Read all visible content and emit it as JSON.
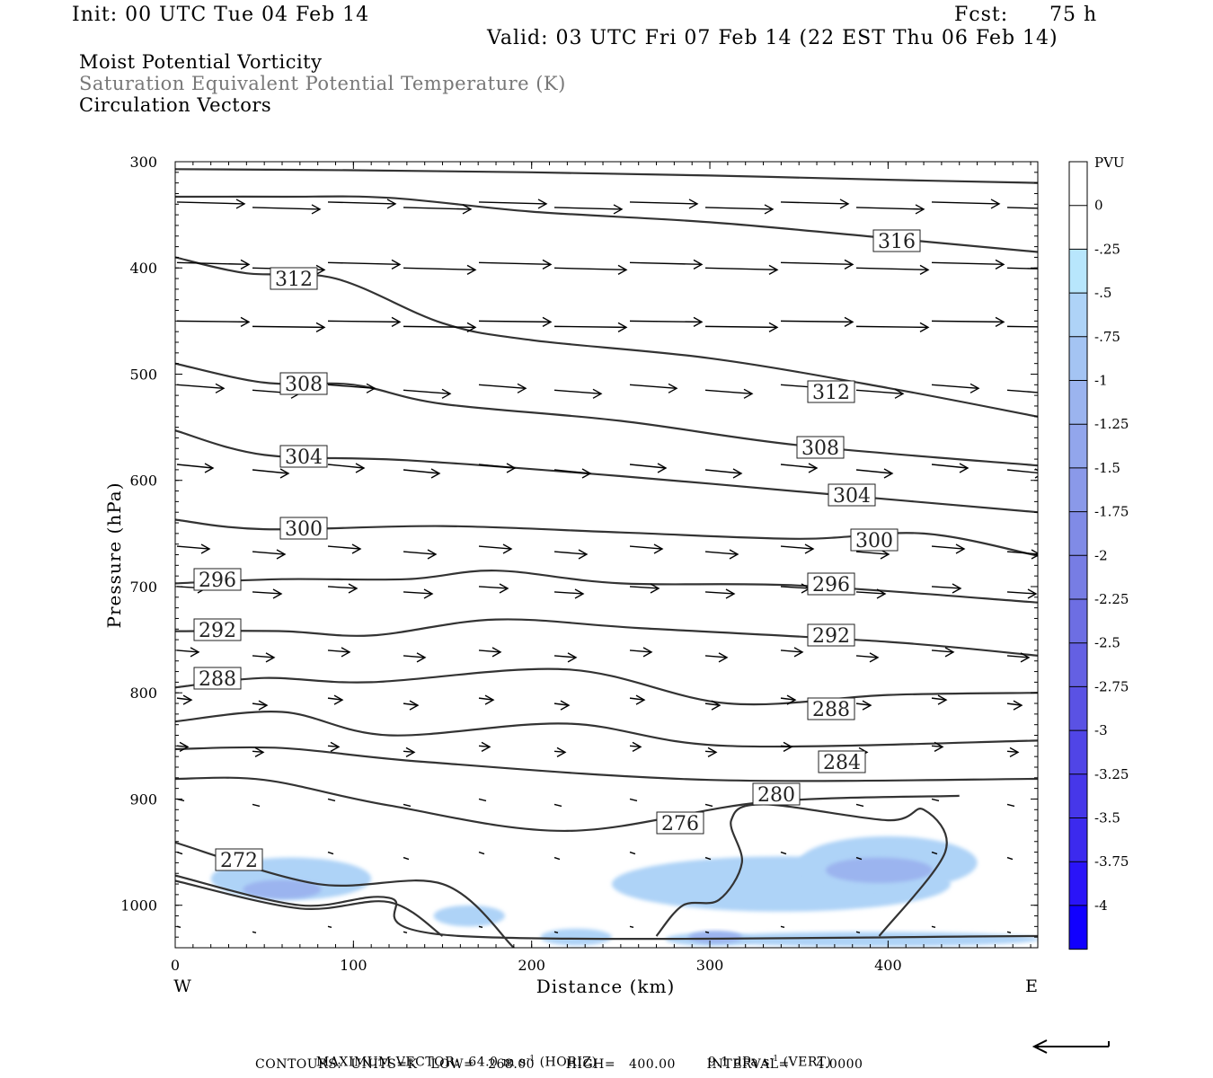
{
  "header": {
    "init": "Init: 00 UTC Tue 04 Feb 14",
    "fcst_label": "Fcst:",
    "fcst_value": "75 h",
    "valid": "Valid: 03 UTC Fri 07 Feb 14 (22 EST Thu 06 Feb 14)"
  },
  "titles": [
    "Moist Potential Vorticity",
    "Saturation Equivalent Potential Temperature (K)",
    "Circulation Vectors"
  ],
  "chart_data": {
    "type": "contour",
    "xlabel": "Distance (km)",
    "ylabel": "Pressure (hPa)",
    "x_ticks": [
      0,
      100,
      200,
      300,
      400
    ],
    "y_ticks": [
      300,
      400,
      500,
      600,
      700,
      800,
      900,
      1000
    ],
    "xlim": [
      0,
      484
    ],
    "ylim": [
      300,
      1040
    ],
    "left_end_label": "W",
    "right_end_label": "E",
    "contour_labels": [
      "316",
      "312",
      "312",
      "308",
      "308",
      "304",
      "304",
      "300",
      "300",
      "296",
      "296",
      "292",
      "292",
      "288",
      "288",
      "284",
      "280",
      "276",
      "272"
    ],
    "contour_units": "K",
    "contour_low": "268.00",
    "contour_high": "400.00",
    "contour_interval": "4.0000",
    "isentropes": [
      {
        "level": null,
        "points": [
          [
            0,
            307
          ],
          [
            100,
            308
          ],
          [
            200,
            310
          ],
          [
            300,
            313
          ],
          [
            400,
            317
          ],
          [
            484,
            320
          ]
        ]
      },
      {
        "level": null,
        "points": [
          [
            0,
            333
          ],
          [
            60,
            333
          ],
          [
            120,
            334
          ],
          [
            200,
            347
          ],
          [
            300,
            357
          ],
          [
            400,
            372
          ],
          [
            484,
            385
          ]
        ]
      },
      {
        "level": null,
        "points": [
          [
            0,
            390
          ],
          [
            40,
            405
          ],
          [
            90,
            410
          ],
          [
            150,
            452
          ],
          [
            200,
            468
          ],
          [
            300,
            485
          ],
          [
            400,
            513
          ],
          [
            484,
            540
          ]
        ]
      },
      {
        "level": null,
        "points": [
          [
            0,
            490
          ],
          [
            50,
            508
          ],
          [
            100,
            510
          ],
          [
            150,
            528
          ],
          [
            250,
            544
          ],
          [
            350,
            567
          ],
          [
            484,
            586
          ]
        ]
      },
      {
        "level": null,
        "points": [
          [
            0,
            553
          ],
          [
            50,
            576
          ],
          [
            130,
            581
          ],
          [
            250,
            596
          ],
          [
            360,
            612
          ],
          [
            484,
            630
          ]
        ]
      },
      {
        "level": null,
        "points": [
          [
            0,
            637
          ],
          [
            50,
            646
          ],
          [
            150,
            643
          ],
          [
            250,
            649
          ],
          [
            350,
            655
          ],
          [
            420,
            650
          ],
          [
            484,
            671
          ]
        ]
      },
      {
        "level": null,
        "points": [
          [
            0,
            697
          ],
          [
            60,
            693
          ],
          [
            130,
            693
          ],
          [
            180,
            685
          ],
          [
            250,
            697
          ],
          [
            350,
            699
          ],
          [
            484,
            715
          ]
        ]
      },
      {
        "level": null,
        "points": [
          [
            0,
            742
          ],
          [
            60,
            742
          ],
          [
            110,
            746
          ],
          [
            180,
            731
          ],
          [
            260,
            739
          ],
          [
            400,
            752
          ],
          [
            484,
            765
          ]
        ]
      },
      {
        "level": null,
        "points": [
          [
            0,
            795
          ],
          [
            50,
            786
          ],
          [
            110,
            790
          ],
          [
            220,
            778
          ],
          [
            310,
            810
          ],
          [
            400,
            802
          ],
          [
            484,
            800
          ]
        ]
      },
      {
        "level": null,
        "points": [
          [
            0,
            827
          ],
          [
            60,
            818
          ],
          [
            120,
            840
          ],
          [
            220,
            829
          ],
          [
            310,
            850
          ],
          [
            484,
            845
          ]
        ]
      },
      {
        "level": null,
        "points": [
          [
            0,
            853
          ],
          [
            60,
            852
          ],
          [
            140,
            865
          ],
          [
            300,
            882
          ],
          [
            484,
            881
          ]
        ]
      },
      {
        "level": null,
        "points": [
          [
            0,
            881
          ],
          [
            50,
            882
          ],
          [
            120,
            906
          ],
          [
            220,
            930
          ],
          [
            330,
            903
          ],
          [
            440,
            897
          ]
        ]
      },
      {
        "level": null,
        "points": [
          [
            0,
            941
          ],
          [
            80,
            980
          ],
          [
            150,
            980
          ],
          [
            190,
            1040
          ]
        ]
      },
      {
        "level": null,
        "points": [
          [
            0,
            972
          ],
          [
            70,
            1000
          ],
          [
            120,
            993
          ],
          [
            160,
            1029
          ],
          [
            484,
            1029
          ]
        ]
      },
      {
        "level": null,
        "points": [
          [
            0,
            977
          ],
          [
            70,
            1003
          ],
          [
            120,
            997
          ],
          [
            150,
            1029
          ]
        ]
      }
    ],
    "pv_shading": [
      {
        "value": -0.5,
        "blobs": [
          {
            "cx": 65,
            "cy": 975,
            "rx": 45,
            "ry": 20
          },
          {
            "cx": 165,
            "cy": 1010,
            "rx": 20,
            "ry": 10
          },
          {
            "cx": 225,
            "cy": 1030,
            "rx": 20,
            "ry": 8
          },
          {
            "cx": 340,
            "cy": 980,
            "rx": 95,
            "ry": 26
          },
          {
            "cx": 400,
            "cy": 960,
            "rx": 50,
            "ry": 25
          },
          {
            "cx": 390,
            "cy": 1032,
            "rx": 95,
            "ry": 7
          },
          {
            "cx": 300,
            "cy": 1032,
            "rx": 25,
            "ry": 6
          }
        ]
      },
      {
        "value": -1,
        "blobs": [
          {
            "cx": 60,
            "cy": 985,
            "rx": 22,
            "ry": 9
          },
          {
            "cx": 395,
            "cy": 967,
            "rx": 30,
            "ry": 12
          },
          {
            "cx": 303,
            "cy": 1030,
            "rx": 15,
            "ry": 6
          }
        ]
      }
    ],
    "vector_field_note": "Circulation vectors: left-to-right (west-to-east) flow, longest aloft, weakening toward surface",
    "colorbar": {
      "title": "PVU",
      "ticks": [
        "0",
        "-.25",
        "-.5",
        "-.75",
        "-1",
        "-1.25",
        "-1.5",
        "-1.75",
        "-2",
        "-2.25",
        "-2.5",
        "-2.75",
        "-3",
        "-3.25",
        "-3.5",
        "-3.75",
        "-4"
      ],
      "colors": [
        "#ffffff",
        "#ffffff",
        "#b8e6fc",
        "#aed3f7",
        "#a4c4f3",
        "#9bb4ef",
        "#92a6ec",
        "#8a99e9",
        "#808be6",
        "#777de4",
        "#6d6ee3",
        "#6460e3",
        "#5a52e4",
        "#5045e6",
        "#4637e9",
        "#3c2aee",
        "#2a14f8",
        "#1100ff"
      ]
    }
  },
  "footer": {
    "max_vector_label": "MAXIMUM VECTOR:",
    "max_horiz": "64.0 m s",
    "horiz_unit": "(HORIZ)",
    "max_vert": "9.1 dPa s",
    "vert_unit": "(VERT)",
    "sup": "-1",
    "contours_line": "CONTOURS:  UNITS=K   LOW=   268.00       HIGH=   400.00       INTERVAL=      4.0000"
  }
}
